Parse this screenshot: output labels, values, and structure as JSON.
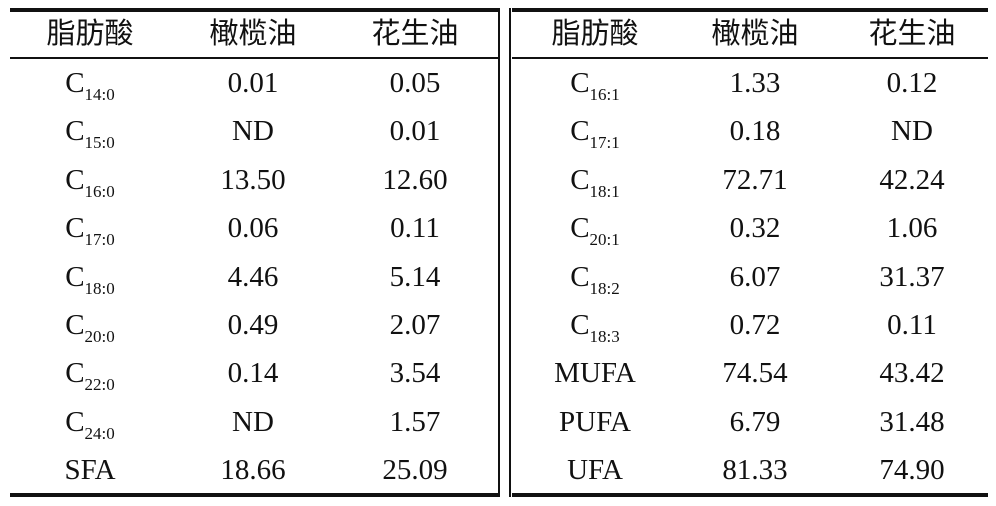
{
  "left": {
    "header": [
      "脂肪酸",
      "橄榄油",
      "花生油"
    ],
    "rows": [
      [
        {
          "main": "C",
          "sub": "14:0"
        },
        "0.01",
        "0.05"
      ],
      [
        {
          "main": "C",
          "sub": "15:0"
        },
        "ND",
        "0.01"
      ],
      [
        {
          "main": "C",
          "sub": "16:0"
        },
        "13.50",
        "12.60"
      ],
      [
        {
          "main": "C",
          "sub": "17:0"
        },
        "0.06",
        "0.11"
      ],
      [
        {
          "main": "C",
          "sub": "18:0"
        },
        "4.46",
        "5.14"
      ],
      [
        {
          "main": "C",
          "sub": "20:0"
        },
        "0.49",
        "2.07"
      ],
      [
        {
          "main": "C",
          "sub": "22:0"
        },
        "0.14",
        "3.54"
      ],
      [
        {
          "main": "C",
          "sub": "24:0"
        },
        "ND",
        "1.57"
      ],
      [
        "SFA",
        "18.66",
        "25.09"
      ]
    ]
  },
  "right": {
    "header": [
      "脂肪酸",
      "橄榄油",
      "花生油"
    ],
    "rows": [
      [
        {
          "main": "C",
          "sub": "16:1"
        },
        "1.33",
        "0.12"
      ],
      [
        {
          "main": "C",
          "sub": "17:1"
        },
        "0.18",
        "ND"
      ],
      [
        {
          "main": "C",
          "sub": "18:1"
        },
        "72.71",
        "42.24"
      ],
      [
        {
          "main": "C",
          "sub": "20:1"
        },
        "0.32",
        "1.06"
      ],
      [
        {
          "main": "C",
          "sub": "18:2"
        },
        "6.07",
        "31.37"
      ],
      [
        {
          "main": "C",
          "sub": "18:3"
        },
        "0.72",
        "0.11"
      ],
      [
        "MUFA",
        "74.54",
        "43.42"
      ],
      [
        "PUFA",
        "6.79",
        "31.48"
      ],
      [
        "UFA",
        "81.33",
        "74.90"
      ]
    ]
  }
}
